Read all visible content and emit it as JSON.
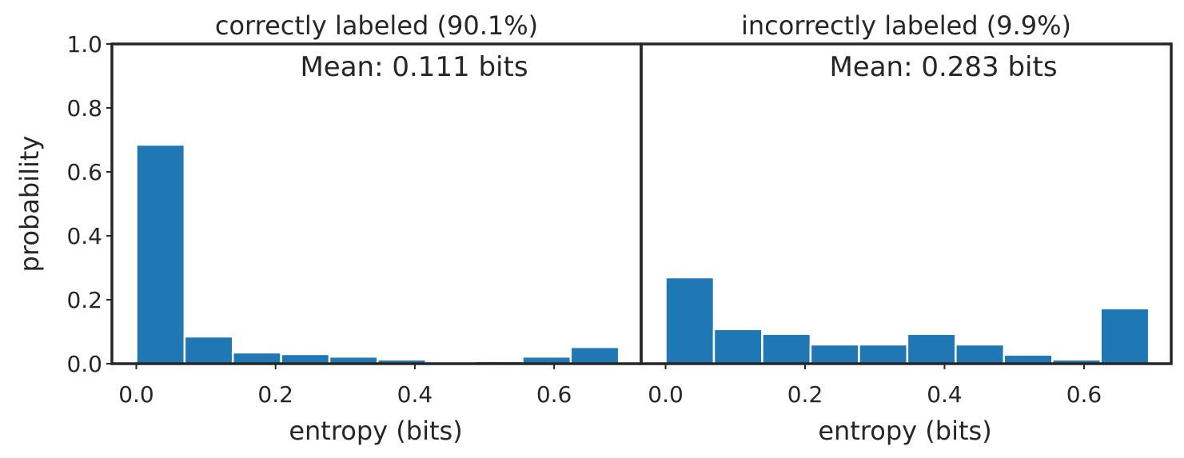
{
  "chart_data": [
    {
      "type": "bar",
      "title": "correctly labeled (90.1%)",
      "annotation": "Mean: 0.111 bits",
      "xlabel": "entropy (bits)",
      "ylabel": "probability",
      "xlim": [
        -0.035,
        0.725
      ],
      "ylim": [
        0,
        1.0
      ],
      "xticks": [
        "0.0",
        "0.2",
        "0.4",
        "0.6"
      ],
      "yticks": [
        "0.0",
        "0.2",
        "0.4",
        "0.6",
        "0.8",
        "1.0"
      ],
      "bin_edges": [
        0.0,
        0.0693,
        0.1386,
        0.2079,
        0.2773,
        0.3466,
        0.4159,
        0.4852,
        0.5545,
        0.6238,
        0.6931
      ],
      "values": [
        0.685,
        0.085,
        0.035,
        0.03,
        0.022,
        0.013,
        0.003,
        0.008,
        0.022,
        0.052
      ],
      "color": "#1f77b4"
    },
    {
      "type": "bar",
      "title": "incorrectly labeled (9.9%)",
      "annotation": "Mean: 0.283 bits",
      "xlabel": "entropy (bits)",
      "ylabel": "",
      "xlim": [
        -0.035,
        0.725
      ],
      "ylim": [
        0,
        1.0
      ],
      "xticks": [
        "0.0",
        "0.2",
        "0.4",
        "0.6"
      ],
      "yticks": [],
      "bin_edges": [
        0.0,
        0.0693,
        0.1386,
        0.2079,
        0.2773,
        0.3466,
        0.4159,
        0.4852,
        0.5545,
        0.6238,
        0.6931
      ],
      "values": [
        0.27,
        0.108,
        0.093,
        0.06,
        0.06,
        0.093,
        0.06,
        0.028,
        0.013,
        0.173
      ],
      "color": "#1f77b4"
    }
  ]
}
